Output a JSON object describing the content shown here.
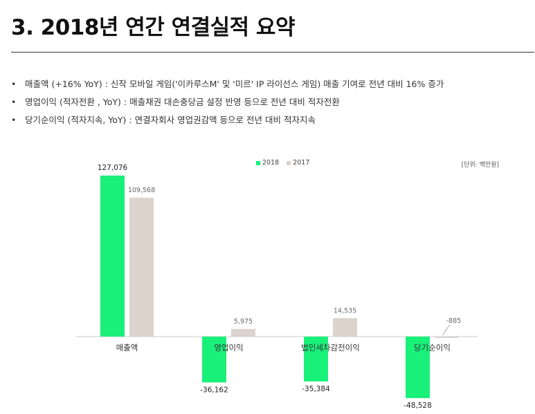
{
  "title": "3. 2018년 연간 연결실적 요약",
  "bullets": [
    "매출액 (+16% YoY) : 신작 모바일 게임('이카루스M' 및 '미르' IP 라이선스 게임) 매출 기여로 전년 대비 16% 증가",
    "영업이익 (적자전환 , YoY) : 매출채권 대손충당금 설정 반영 등으로 전년 대비 적자전환",
    "당기순이익 (적자지속, YoY) : 연결자회사 영업권감액 등으로  전년 대비 적자지속"
  ],
  "unit_label": "[단위: 백만원]",
  "colors": {
    "series2018": "#19f07a",
    "series2017": "#dbd3cc",
    "axis": "#c8c8c8"
  },
  "chart_data": {
    "type": "bar",
    "categories": [
      "매출액",
      "영업이익",
      "법인세차감전이익",
      "당기순이익"
    ],
    "series": [
      {
        "name": "2018",
        "values": [
          127076,
          -36162,
          -35384,
          -48528
        ],
        "labels": [
          "127,076",
          "-36,162",
          "-35,384",
          "-48,528"
        ]
      },
      {
        "name": "2017",
        "values": [
          109568,
          5975,
          14535,
          -885
        ],
        "labels": [
          "109,568",
          "5,975",
          "14,535",
          "-885"
        ]
      }
    ],
    "legend_position": "top-center",
    "grid": false,
    "ylim": [
      -55000,
      135000
    ]
  }
}
